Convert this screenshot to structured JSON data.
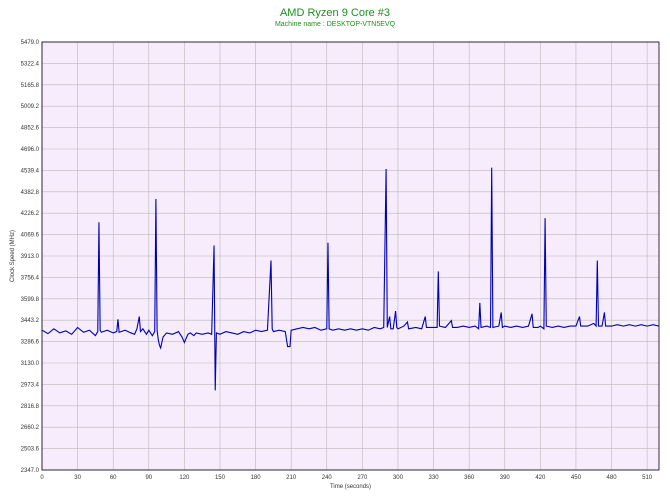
{
  "title": "AMD Ryzen 9 Core #3",
  "subtitle": "Machine name : DESKTOP-VTN5EVQ",
  "colors": {
    "background": "#f6ecfb",
    "grid": "#b9b9b9",
    "line": "#0000b4",
    "title": "#1f8f1f",
    "axis": "#000000"
  },
  "chart_data": {
    "type": "line",
    "title": "AMD Ryzen 9 Core #3",
    "subtitle": "Machine name : DESKTOP-VTN5EVQ",
    "xlabel": "Time (seconds)",
    "ylabel": "Clock Speed (MHz)",
    "xlim": [
      0,
      520
    ],
    "ylim": [
      2347.0,
      5479.0
    ],
    "grid": true,
    "x_ticks": [
      "0",
      "30",
      "60",
      "90",
      "120",
      "150",
      "180",
      "210",
      "240",
      "270",
      "300",
      "330",
      "360",
      "390",
      "420",
      "450",
      "480",
      "510"
    ],
    "y_ticks": [
      "2347.0",
      "2503.6",
      "2660.2",
      "2816.8",
      "2973.4",
      "3130.0",
      "3286.6",
      "3443.2",
      "3599.8",
      "3756.4",
      "3913.0",
      "4069.6",
      "4226.2",
      "4382.8",
      "4539.4",
      "4696.0",
      "4852.6",
      "5009.2",
      "5165.8",
      "5322.4",
      "5479.0"
    ],
    "series": [
      {
        "values": [
          [
            0,
            3370
          ],
          [
            5,
            3345
          ],
          [
            10,
            3380
          ],
          [
            15,
            3350
          ],
          [
            20,
            3365
          ],
          [
            25,
            3340
          ],
          [
            30,
            3390
          ],
          [
            35,
            3355
          ],
          [
            40,
            3370
          ],
          [
            45,
            3330
          ],
          [
            47,
            3360
          ],
          [
            48,
            4160
          ],
          [
            49,
            3370
          ],
          [
            50,
            3355
          ],
          [
            55,
            3370
          ],
          [
            60,
            3350
          ],
          [
            63,
            3360
          ],
          [
            64,
            3450
          ],
          [
            65,
            3355
          ],
          [
            70,
            3370
          ],
          [
            75,
            3350
          ],
          [
            78,
            3340
          ],
          [
            80,
            3380
          ],
          [
            82,
            3470
          ],
          [
            83,
            3360
          ],
          [
            85,
            3380
          ],
          [
            88,
            3340
          ],
          [
            90,
            3370
          ],
          [
            93,
            3330
          ],
          [
            95,
            3360
          ],
          [
            96,
            4330
          ],
          [
            97,
            3370
          ],
          [
            98,
            3300
          ],
          [
            99,
            3260
          ],
          [
            100,
            3240
          ],
          [
            102,
            3320
          ],
          [
            105,
            3350
          ],
          [
            110,
            3340
          ],
          [
            115,
            3360
          ],
          [
            118,
            3320
          ],
          [
            120,
            3280
          ],
          [
            123,
            3340
          ],
          [
            125,
            3350
          ],
          [
            128,
            3330
          ],
          [
            130,
            3350
          ],
          [
            135,
            3340
          ],
          [
            140,
            3350
          ],
          [
            143,
            3340
          ],
          [
            145,
            3990
          ],
          [
            146,
            2930
          ],
          [
            147,
            3350
          ],
          [
            150,
            3340
          ],
          [
            155,
            3360
          ],
          [
            160,
            3350
          ],
          [
            165,
            3340
          ],
          [
            170,
            3360
          ],
          [
            175,
            3350
          ],
          [
            180,
            3370
          ],
          [
            185,
            3360
          ],
          [
            190,
            3370
          ],
          [
            193,
            3880
          ],
          [
            194,
            3380
          ],
          [
            195,
            3360
          ],
          [
            200,
            3370
          ],
          [
            205,
            3360
          ],
          [
            207,
            3250
          ],
          [
            209,
            3250
          ],
          [
            210,
            3370
          ],
          [
            215,
            3380
          ],
          [
            220,
            3390
          ],
          [
            225,
            3380
          ],
          [
            230,
            3390
          ],
          [
            235,
            3370
          ],
          [
            240,
            3380
          ],
          [
            241,
            4010
          ],
          [
            242,
            3380
          ],
          [
            245,
            3370
          ],
          [
            250,
            3380
          ],
          [
            255,
            3370
          ],
          [
            260,
            3380
          ],
          [
            265,
            3370
          ],
          [
            270,
            3380
          ],
          [
            275,
            3370
          ],
          [
            280,
            3390
          ],
          [
            285,
            3380
          ],
          [
            288,
            3390
          ],
          [
            290,
            4550
          ],
          [
            291,
            3390
          ],
          [
            293,
            3470
          ],
          [
            294,
            3380
          ],
          [
            296,
            3380
          ],
          [
            298,
            3510
          ],
          [
            299,
            3390
          ],
          [
            300,
            3380
          ],
          [
            305,
            3400
          ],
          [
            308,
            3430
          ],
          [
            309,
            3380
          ],
          [
            315,
            3390
          ],
          [
            320,
            3380
          ],
          [
            323,
            3470
          ],
          [
            324,
            3390
          ],
          [
            330,
            3390
          ],
          [
            333,
            3390
          ],
          [
            334,
            3800
          ],
          [
            335,
            3400
          ],
          [
            340,
            3390
          ],
          [
            345,
            3440
          ],
          [
            346,
            3390
          ],
          [
            350,
            3390
          ],
          [
            355,
            3400
          ],
          [
            360,
            3390
          ],
          [
            365,
            3400
          ],
          [
            368,
            3380
          ],
          [
            369,
            3570
          ],
          [
            370,
            3390
          ],
          [
            375,
            3400
          ],
          [
            378,
            3390
          ],
          [
            379,
            4560
          ],
          [
            380,
            3390
          ],
          [
            385,
            3400
          ],
          [
            387,
            3500
          ],
          [
            388,
            3390
          ],
          [
            390,
            3400
          ],
          [
            395,
            3390
          ],
          [
            400,
            3400
          ],
          [
            405,
            3390
          ],
          [
            410,
            3400
          ],
          [
            413,
            3490
          ],
          [
            414,
            3390
          ],
          [
            418,
            3390
          ],
          [
            420,
            3400
          ],
          [
            423,
            3380
          ],
          [
            424,
            4190
          ],
          [
            425,
            3400
          ],
          [
            430,
            3390
          ],
          [
            435,
            3400
          ],
          [
            440,
            3390
          ],
          [
            445,
            3400
          ],
          [
            450,
            3400
          ],
          [
            453,
            3470
          ],
          [
            454,
            3400
          ],
          [
            460,
            3400
          ],
          [
            465,
            3420
          ],
          [
            467,
            3400
          ],
          [
            468,
            3880
          ],
          [
            469,
            3400
          ],
          [
            472,
            3400
          ],
          [
            474,
            3500
          ],
          [
            475,
            3400
          ],
          [
            480,
            3400
          ],
          [
            485,
            3410
          ],
          [
            490,
            3400
          ],
          [
            495,
            3410
          ],
          [
            500,
            3400
          ],
          [
            505,
            3410
          ],
          [
            510,
            3400
          ],
          [
            515,
            3410
          ],
          [
            520,
            3400
          ]
        ]
      }
    ]
  }
}
